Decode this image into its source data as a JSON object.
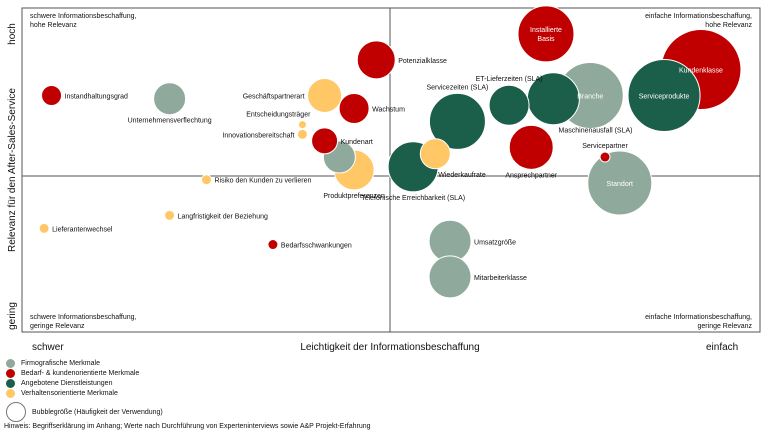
{
  "chart_data": {
    "type": "scatter",
    "title": "",
    "xlabel": "Leichtigkeit der Informationsbeschaffung",
    "ylabel": "Relevanz für den After-Sales-Service",
    "x_low": "schwer",
    "x_high": "einfach",
    "y_low": "gering",
    "y_high": "hoch",
    "xlim": [
      0,
      100
    ],
    "ylim": [
      0,
      100
    ],
    "corners": {
      "top_left": [
        "schwere Informationsbeschaffung,",
        "hohe Relevanz"
      ],
      "top_right": [
        "einfache Informationsbeschaffung,",
        "hohe Relevanz"
      ],
      "bottom_left": [
        "schwere Informationsbeschaffung,",
        "geringe Relevanz"
      ],
      "bottom_right": [
        "einfache Informationsbeschaffung,",
        "geringe Relevanz"
      ]
    },
    "categories": [
      {
        "name": "Firmografische Merkmale",
        "color": "#8fa99c"
      },
      {
        "name": "Bedarf- & kundenorientierte Merkmale",
        "color": "#c00000"
      },
      {
        "name": "Angebotene Dienstleistungen",
        "color": "#1b5e49"
      },
      {
        "name": "Verhaltensorientierte Merkmale",
        "color": "#ffc766"
      }
    ],
    "size_legend": "Bubblegröße (Häufigkeit der Verwendung)",
    "points": [
      {
        "name": "Instandhaltungsgrad",
        "x": 4,
        "y": 73,
        "size": 10,
        "cat": 1,
        "label_pos": "right"
      },
      {
        "name": "Unternehmensverflechtung",
        "x": 20,
        "y": 72,
        "size": 16,
        "cat": 0,
        "label_pos": "below"
      },
      {
        "name": "Geschäftspartnerart",
        "x": 41,
        "y": 73,
        "size": 17,
        "cat": 3,
        "label_pos": "left"
      },
      {
        "name": "Potenzialklasse",
        "x": 48,
        "y": 84,
        "size": 19,
        "cat": 1,
        "label_pos": "right"
      },
      {
        "name": "Wachstum",
        "x": 45,
        "y": 69,
        "size": 15,
        "cat": 1,
        "label_pos": "right"
      },
      {
        "name": "Entscheidungsträger",
        "x": 38,
        "y": 64,
        "size": 4,
        "cat": 3,
        "label_pos": "above-left"
      },
      {
        "name": "Innovationsbereitschaft",
        "x": 38,
        "y": 61,
        "size": 5,
        "cat": 3,
        "label_pos": "left"
      },
      {
        "name": "Kundenart",
        "x": 41,
        "y": 59,
        "size": 13,
        "cat": 1,
        "label_pos": "right"
      },
      {
        "name": "Produktpreferenzen",
        "x": 45,
        "y": 50,
        "size": 20,
        "cat": 3,
        "label_pos": "below"
      },
      {
        "name": "",
        "x": 43,
        "y": 54,
        "size": 16,
        "cat": 0,
        "label_pos": "none"
      },
      {
        "name": "Telefonische Erreichbarkeit (SLA)",
        "x": 53,
        "y": 51,
        "size": 25,
        "cat": 2,
        "label_pos": "below"
      },
      {
        "name": "Wiederkaufrate",
        "x": 56,
        "y": 55,
        "size": 15,
        "cat": 3,
        "label_pos": "below-right"
      },
      {
        "name": "Servicezeiten (SLA)",
        "x": 59,
        "y": 65,
        "size": 28,
        "cat": 2,
        "label_pos": "above-right"
      },
      {
        "name": "ET-Lieferzeiten (SLA)",
        "x": 66,
        "y": 70,
        "size": 20,
        "cat": 2,
        "label_pos": "above"
      },
      {
        "name": "Branche",
        "x": 77,
        "y": 73,
        "size": 33,
        "cat": 0,
        "label_pos": "inside"
      },
      {
        "name": "Maschinenausfall (SLA)",
        "x": 72,
        "y": 72,
        "size": 26,
        "cat": 2,
        "label_pos": "below-right"
      },
      {
        "name": "Installierte Basis",
        "x": 71,
        "y": 92,
        "size": 28,
        "cat": 1,
        "label_pos": "inside"
      },
      {
        "name": "Kundenklasse",
        "x": 92,
        "y": 81,
        "size": 40,
        "cat": 1,
        "label_pos": "inside"
      },
      {
        "name": "Serviceprodukte",
        "x": 87,
        "y": 73,
        "size": 36,
        "cat": 2,
        "label_pos": "inside"
      },
      {
        "name": "Ansprechpartner",
        "x": 69,
        "y": 57,
        "size": 22,
        "cat": 1,
        "label_pos": "below"
      },
      {
        "name": "Servicepartner",
        "x": 79,
        "y": 54,
        "size": 5,
        "cat": 1,
        "label_pos": "above"
      },
      {
        "name": "Standort",
        "x": 81,
        "y": 46,
        "size": 32,
        "cat": 0,
        "label_pos": "inside"
      },
      {
        "name": "Risiko den Kunden zu verlieren",
        "x": 25,
        "y": 47,
        "size": 5,
        "cat": 3,
        "label_pos": "right"
      },
      {
        "name": "Langfristigkeit der Beziehung",
        "x": 20,
        "y": 36,
        "size": 5,
        "cat": 3,
        "label_pos": "right"
      },
      {
        "name": "Lieferantenwechsel",
        "x": 3,
        "y": 32,
        "size": 5,
        "cat": 3,
        "label_pos": "right"
      },
      {
        "name": "Bedarfsschwankungen",
        "x": 34,
        "y": 27,
        "size": 5,
        "cat": 1,
        "label_pos": "right"
      },
      {
        "name": "Umsatzgröße",
        "x": 58,
        "y": 28,
        "size": 21,
        "cat": 0,
        "label_pos": "right"
      },
      {
        "name": "Mitarbeiterklasse",
        "x": 58,
        "y": 17,
        "size": 21,
        "cat": 0,
        "label_pos": "right"
      }
    ]
  },
  "note": "Hinweis: Begriffserklärung im Anhang; Werte nach Durchführung von Experteninterviews sowie A&P Projekt-Erfahrung"
}
